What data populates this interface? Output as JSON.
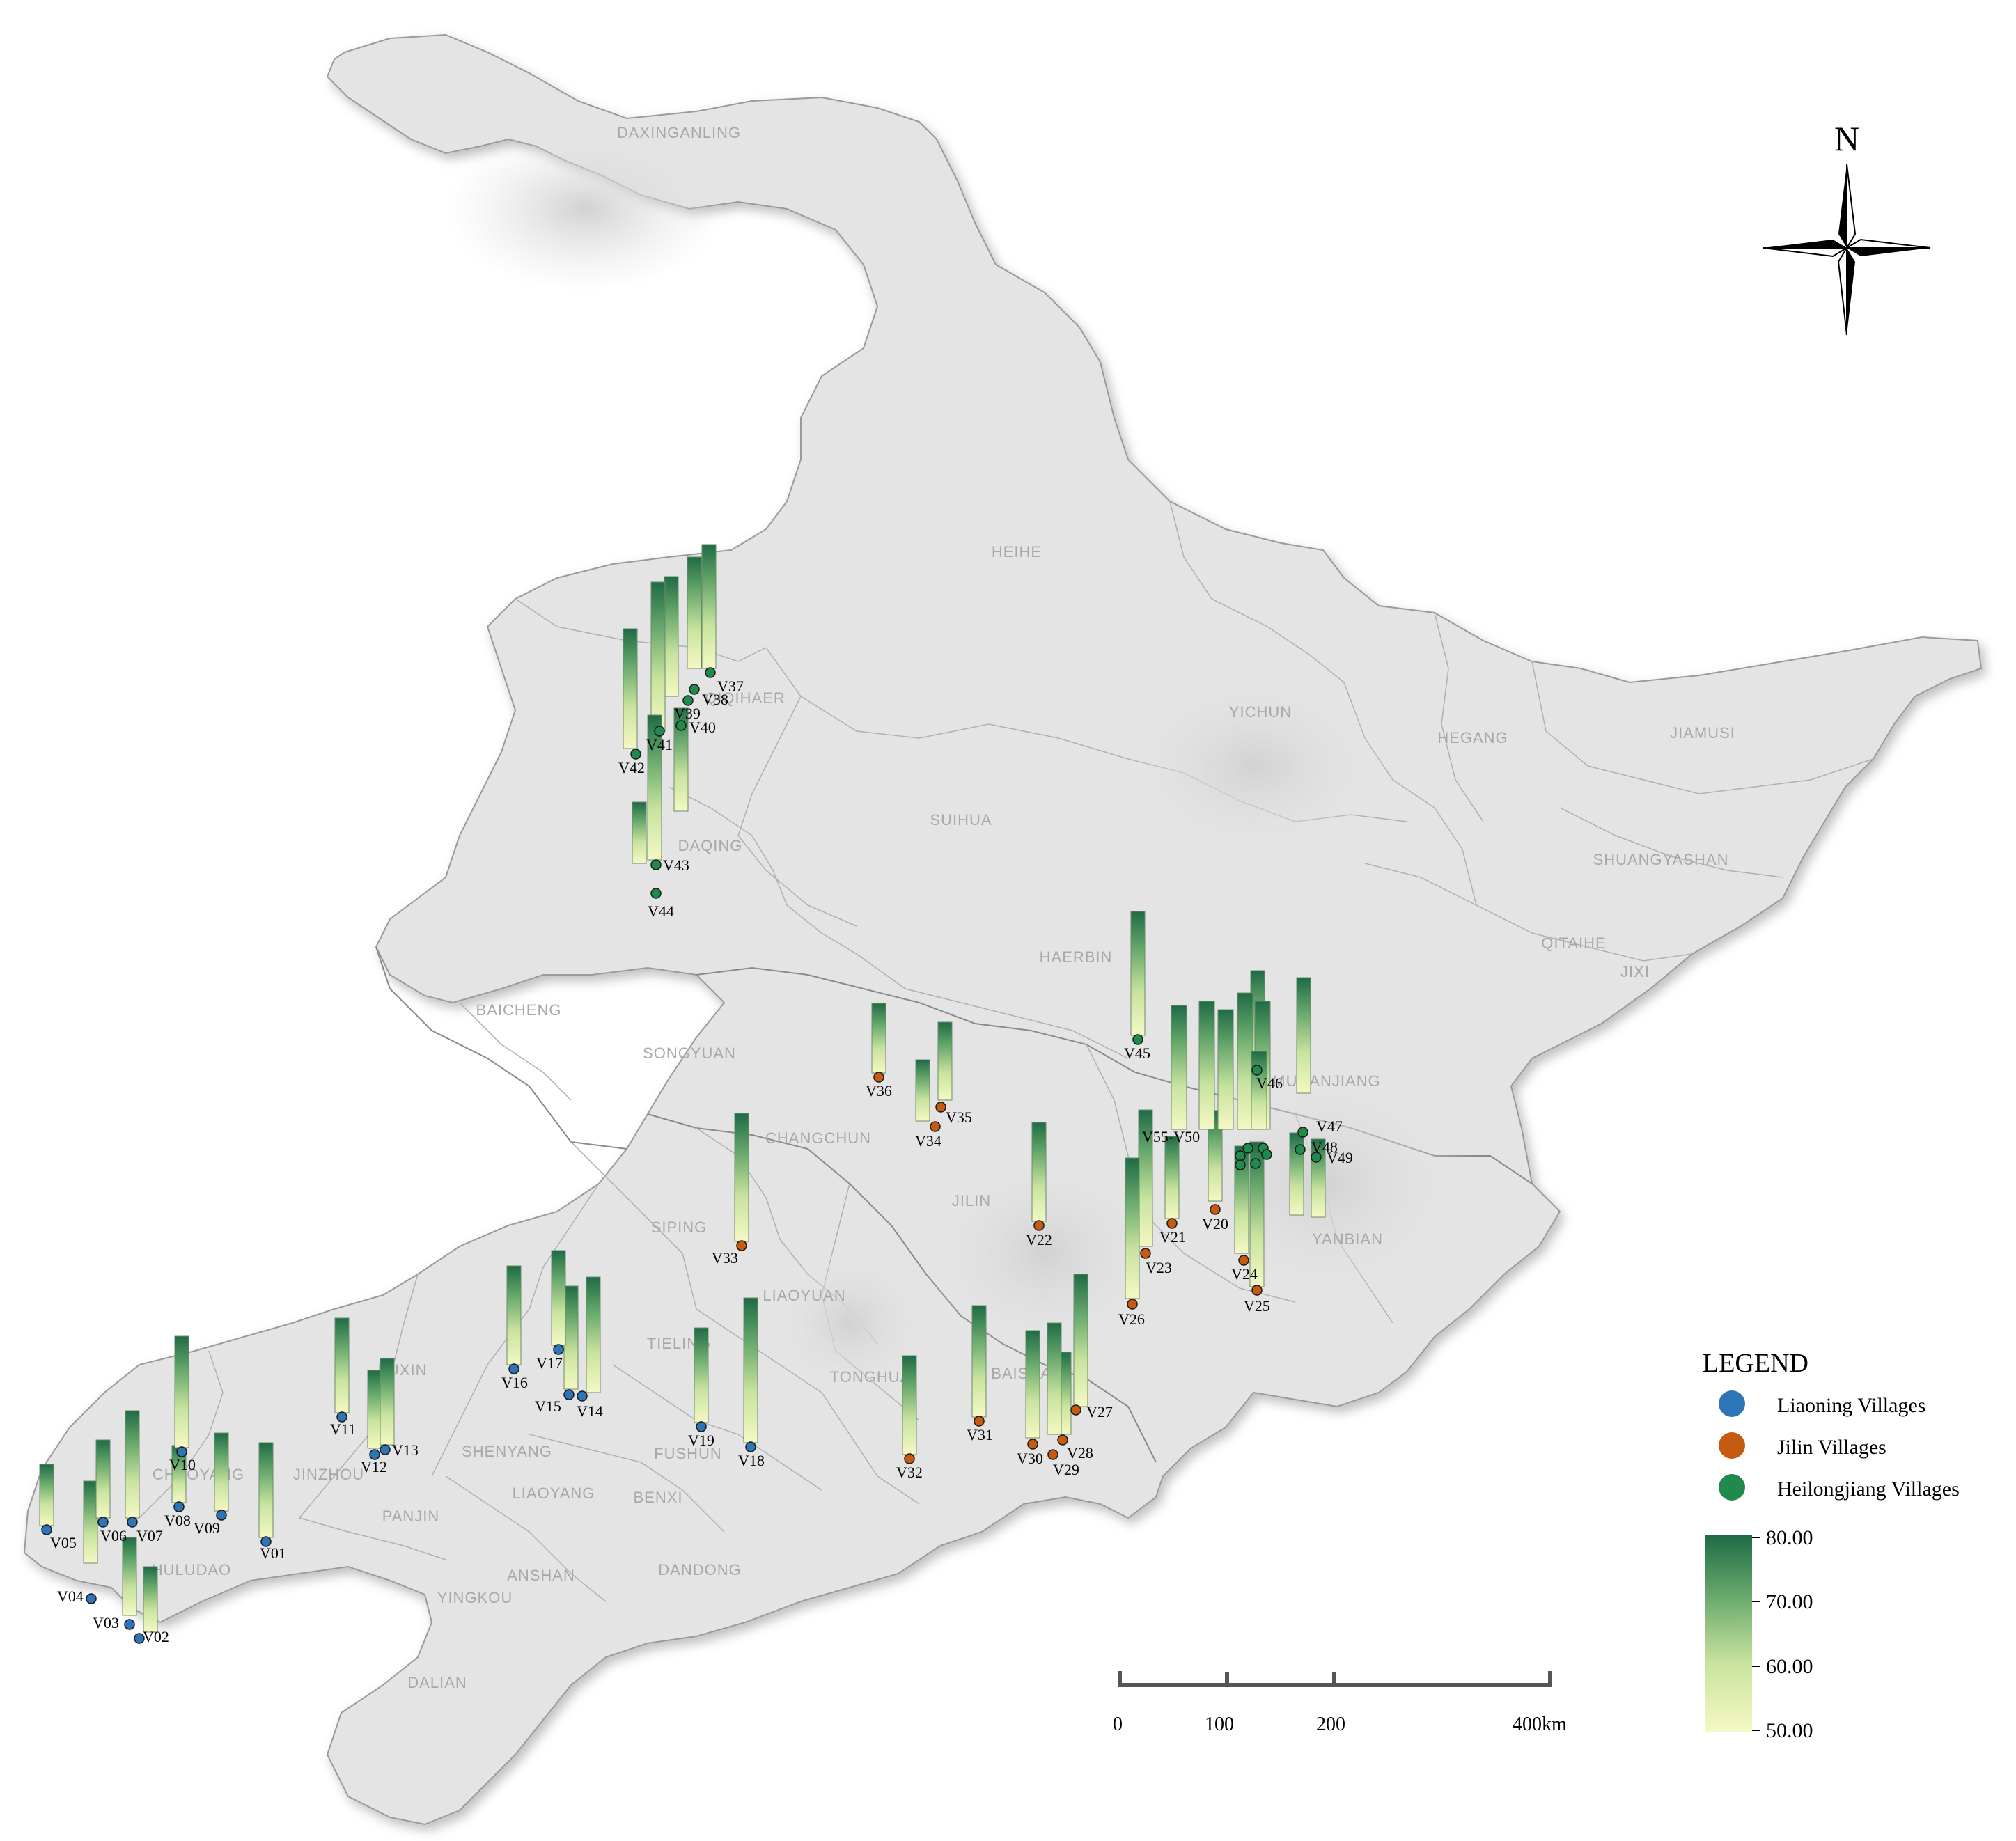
{
  "cities": [
    {
      "id": "daxinganling",
      "label": "DAXINGANLING"
    },
    {
      "id": "heihe",
      "label": "HEIHE"
    },
    {
      "id": "qiqihaer",
      "label": "QIQIHAER"
    },
    {
      "id": "yichun",
      "label": "YICHUN"
    },
    {
      "id": "hegang",
      "label": "HEGANG"
    },
    {
      "id": "jiamusi",
      "label": "JIAMUSI"
    },
    {
      "id": "suihua",
      "label": "SUIHUA"
    },
    {
      "id": "shuangyashan",
      "label": "SHUANGYASHAN"
    },
    {
      "id": "daqing",
      "label": "DAQING"
    },
    {
      "id": "qitaihe",
      "label": "QITAIHE"
    },
    {
      "id": "haerbin",
      "label": "HAERBIN"
    },
    {
      "id": "jixi",
      "label": "JIXI"
    },
    {
      "id": "baicheng",
      "label": "BAICHENG"
    },
    {
      "id": "songyuan",
      "label": "SONGYUAN"
    },
    {
      "id": "mudanjiang",
      "label": "MUDANJIANG"
    },
    {
      "id": "changchun",
      "label": "CHANGCHUN"
    },
    {
      "id": "jilin",
      "label": "JILIN"
    },
    {
      "id": "siping",
      "label": "SIPING"
    },
    {
      "id": "yanbian",
      "label": "YANBIAN"
    },
    {
      "id": "liaoyuan",
      "label": "LIAOYUAN"
    },
    {
      "id": "tieling",
      "label": "TIELING"
    },
    {
      "id": "fuxin",
      "label": "FUXIN"
    },
    {
      "id": "tonghua",
      "label": "TONGHUA"
    },
    {
      "id": "baishan",
      "label": "BAISHAN"
    },
    {
      "id": "chaoyang",
      "label": "CHAOYANG"
    },
    {
      "id": "jinzhou",
      "label": "JINZHOU"
    },
    {
      "id": "shenyang",
      "label": "SHENYANG"
    },
    {
      "id": "fushun",
      "label": "FUSHUN"
    },
    {
      "id": "benxi",
      "label": "BENXI"
    },
    {
      "id": "liaoyang",
      "label": "LIAOYANG"
    },
    {
      "id": "panjin",
      "label": "PANJIN"
    },
    {
      "id": "huludao",
      "label": "HULUDAO"
    },
    {
      "id": "anshan",
      "label": "ANSHAN"
    },
    {
      "id": "dandong",
      "label": "DANDONG"
    },
    {
      "id": "yingkou",
      "label": "YINGKOU"
    },
    {
      "id": "dalian",
      "label": "DALIAN"
    }
  ],
  "north_arrow": {
    "label": "N"
  },
  "legend": {
    "title": "LEGEND",
    "items": [
      {
        "label": "Liaoning Villages",
        "color": "#2e75b6"
      },
      {
        "label": "Jilin Villages",
        "color": "#c55a11"
      },
      {
        "label": "Heilongjiang Villages",
        "color": "#1f8a4c"
      }
    ],
    "gradient": {
      "min_color": "#f5f8c3",
      "max_color": "#1e6b45",
      "ticks": [
        "80.00",
        "70.00",
        "60.00",
        "50.00"
      ]
    }
  },
  "scale_bar": {
    "labels": [
      "0",
      "100",
      "200",
      "400km"
    ]
  },
  "village_group_label": "V55-V50",
  "villages": [
    {
      "id": "V01",
      "label": "V01",
      "province": "liaoning",
      "value": 66
    },
    {
      "id": "V02",
      "label": "V02",
      "province": "liaoning",
      "value": 59
    },
    {
      "id": "V03",
      "label": "V03",
      "province": "liaoning",
      "value": 62
    },
    {
      "id": "V04",
      "label": "V04",
      "province": "liaoning",
      "value": 63
    },
    {
      "id": "V05",
      "label": "V05",
      "province": "liaoning",
      "value": 58
    },
    {
      "id": "V06",
      "label": "V06",
      "province": "liaoning",
      "value": 62
    },
    {
      "id": "V07",
      "label": "V07",
      "province": "liaoning",
      "value": 69
    },
    {
      "id": "V08",
      "label": "V08",
      "province": "liaoning",
      "value": 57
    },
    {
      "id": "V09",
      "label": "V09",
      "province": "liaoning",
      "value": 62
    },
    {
      "id": "V10",
      "label": "V10",
      "province": "liaoning",
      "value": 70
    },
    {
      "id": "V11",
      "label": "V11",
      "province": "liaoning",
      "value": 66
    },
    {
      "id": "V12",
      "label": "V12",
      "province": "liaoning",
      "value": 62
    },
    {
      "id": "V13",
      "label": "V13",
      "province": "liaoning",
      "value": 64
    },
    {
      "id": "V14",
      "label": "V14",
      "province": "liaoning",
      "value": 71
    },
    {
      "id": "V15",
      "label": "V15",
      "province": "liaoning",
      "value": 68
    },
    {
      "id": "V16",
      "label": "V16",
      "province": "liaoning",
      "value": 67
    },
    {
      "id": "V17",
      "label": "V17",
      "province": "liaoning",
      "value": 66
    },
    {
      "id": "V18",
      "label": "V18",
      "province": "liaoning",
      "value": 78
    },
    {
      "id": "V19",
      "label": "V19",
      "province": "liaoning",
      "value": 66
    },
    {
      "id": "V20",
      "label": "V20",
      "province": "jilin",
      "value": 65
    },
    {
      "id": "V21",
      "label": "V21",
      "province": "jilin",
      "value": 63
    },
    {
      "id": "V22",
      "label": "V22",
      "province": "jilin",
      "value": 67
    },
    {
      "id": "V23",
      "label": "V23",
      "province": "jilin",
      "value": 76
    },
    {
      "id": "V24",
      "label": "V24",
      "province": "jilin",
      "value": 69
    },
    {
      "id": "V25",
      "label": "V25",
      "province": "jilin",
      "value": 78
    },
    {
      "id": "V26",
      "label": "V26",
      "province": "jilin",
      "value": 77
    },
    {
      "id": "V27",
      "label": "V27",
      "province": "jilin",
      "value": 75
    },
    {
      "id": "V28",
      "label": "V28",
      "province": "jilin",
      "value": 63
    },
    {
      "id": "V29",
      "label": "V29",
      "province": "jilin",
      "value": 70
    },
    {
      "id": "V30",
      "label": "V30",
      "province": "jilin",
      "value": 69
    },
    {
      "id": "V31",
      "label": "V31",
      "province": "jilin",
      "value": 70
    },
    {
      "id": "V32",
      "label": "V32",
      "province": "jilin",
      "value": 67
    },
    {
      "id": "V33",
      "label": "V33",
      "province": "jilin",
      "value": 74
    },
    {
      "id": "V34",
      "label": "V34",
      "province": "jilin",
      "value": 58
    },
    {
      "id": "V35",
      "label": "V35",
      "province": "jilin",
      "value": 62
    },
    {
      "id": "V36",
      "label": "V36",
      "province": "jilin",
      "value": 60
    },
    {
      "id": "V37",
      "label": "V37",
      "province": "heilongjiang",
      "value": 73
    },
    {
      "id": "V38",
      "label": "V38",
      "province": "heilongjiang",
      "value": 70
    },
    {
      "id": "V39",
      "label": "V39",
      "province": "heilongjiang",
      "value": 72
    },
    {
      "id": "V40",
      "label": "V40",
      "province": "heilongjiang",
      "value": 68
    },
    {
      "id": "V41",
      "label": "V41",
      "province": "heilongjiang",
      "value": 79
    },
    {
      "id": "V42",
      "label": "V42",
      "province": "heilongjiang",
      "value": 72
    },
    {
      "id": "V43",
      "label": "V43",
      "province": "heilongjiang",
      "value": 78
    },
    {
      "id": "V44",
      "label": "V44",
      "province": "heilongjiang",
      "value": 58
    },
    {
      "id": "V45",
      "label": "V45",
      "province": "heilongjiang",
      "value": 73
    },
    {
      "id": "V46",
      "label": "V46",
      "province": "heilongjiang",
      "value": 71
    },
    {
      "id": "V47",
      "label": "V47",
      "province": "heilongjiang",
      "value": 71
    },
    {
      "id": "V48",
      "label": "V48",
      "province": "heilongjiang",
      "value": 63
    },
    {
      "id": "V49",
      "label": "V49",
      "province": "heilongjiang",
      "value": 62
    },
    {
      "id": "V50",
      "label": "",
      "province": "heilongjiang",
      "value": 73
    },
    {
      "id": "V51",
      "label": "",
      "province": "heilongjiang",
      "value": 74
    },
    {
      "id": "V52",
      "label": "",
      "province": "heilongjiang",
      "value": 72
    },
    {
      "id": "V53",
      "label": "",
      "province": "heilongjiang",
      "value": 76
    },
    {
      "id": "V54",
      "label": "",
      "province": "heilongjiang",
      "value": 74
    },
    {
      "id": "V55",
      "label": "",
      "province": "heilongjiang",
      "value": 62
    }
  ]
}
